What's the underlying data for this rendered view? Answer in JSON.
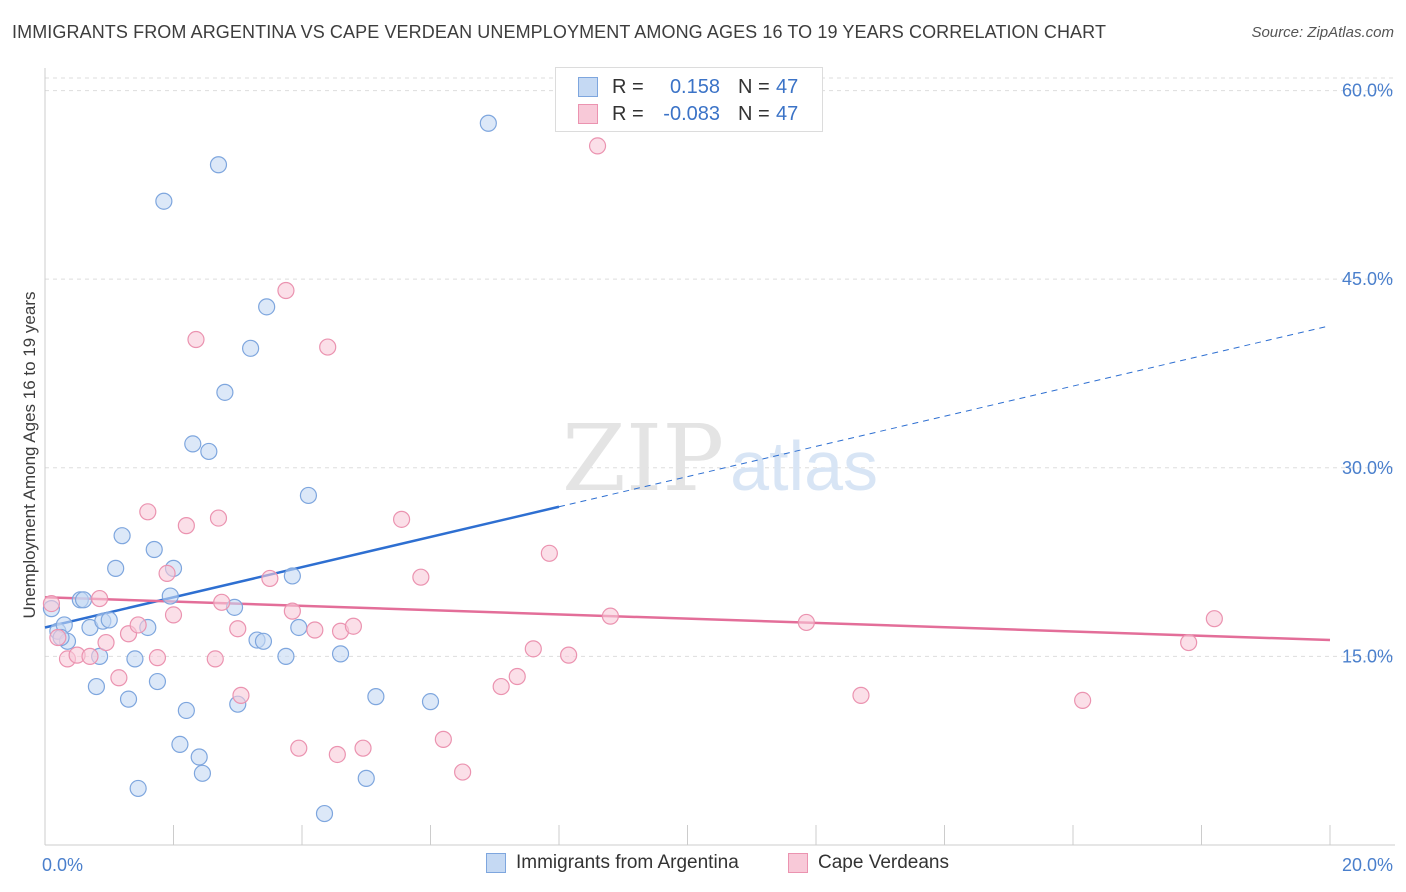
{
  "title": "IMMIGRANTS FROM ARGENTINA VS CAPE VERDEAN UNEMPLOYMENT AMONG AGES 16 TO 19 YEARS CORRELATION CHART",
  "source": "Source: ZipAtlas.com",
  "watermark": {
    "zip": "ZIP",
    "atlas": "atlas"
  },
  "legend": {
    "rows": [
      {
        "r_label": "R =",
        "r_value": "0.158",
        "n_label": "N =",
        "n_value": "47"
      },
      {
        "r_label": "R =",
        "r_value": "-0.083",
        "n_label": "N =",
        "n_value": "47"
      }
    ]
  },
  "bottom_legend": [
    "Immigrants from Argentina",
    "Cape Verdeans"
  ],
  "colors": {
    "blue_fill": "#c5d9f3",
    "blue_stroke": "#7ea6de",
    "blue_line": "#2e6fd1",
    "pink_fill": "#f8c9d8",
    "pink_stroke": "#eb93b0",
    "pink_line": "#e36e99",
    "grid": "#dddddd",
    "tick_text": "#4a7fcc"
  },
  "chart_data": {
    "type": "scatter",
    "title": "IMMIGRANTS FROM ARGENTINA VS CAPE VERDEAN UNEMPLOYMENT AMONG AGES 16 TO 19 YEARS CORRELATION CHART",
    "xlabel": "",
    "ylabel": "Unemployment Among Ages 16 to 19 years",
    "xlim": [
      0,
      20
    ],
    "ylim": [
      0,
      61
    ],
    "x_tick_labels": [
      "0.0%",
      "20.0%"
    ],
    "y_ticks": [
      15,
      30,
      45,
      60
    ],
    "y_tick_labels": [
      "15.0%",
      "30.0%",
      "45.0%",
      "60.0%"
    ],
    "grid": true,
    "series": [
      {
        "name": "Immigrants from Argentina",
        "color": "blue",
        "points": [
          [
            0.1,
            18.8
          ],
          [
            0.2,
            17.0
          ],
          [
            0.3,
            17.5
          ],
          [
            0.35,
            16.2
          ],
          [
            0.55,
            19.5
          ],
          [
            0.7,
            17.3
          ],
          [
            0.9,
            17.8
          ],
          [
            0.8,
            12.6
          ],
          [
            0.85,
            15.0
          ],
          [
            1.0,
            17.9
          ],
          [
            1.1,
            22.0
          ],
          [
            1.2,
            24.6
          ],
          [
            1.3,
            11.6
          ],
          [
            1.4,
            14.8
          ],
          [
            1.45,
            4.5
          ],
          [
            1.6,
            17.3
          ],
          [
            1.7,
            23.5
          ],
          [
            1.75,
            13.0
          ],
          [
            1.85,
            51.2
          ],
          [
            1.95,
            19.8
          ],
          [
            2.0,
            22.0
          ],
          [
            2.1,
            8.0
          ],
          [
            2.2,
            10.7
          ],
          [
            2.3,
            31.9
          ],
          [
            2.4,
            7.0
          ],
          [
            2.45,
            5.7
          ],
          [
            2.55,
            31.3
          ],
          [
            2.7,
            54.1
          ],
          [
            2.8,
            36.0
          ],
          [
            2.95,
            18.9
          ],
          [
            3.0,
            11.2
          ],
          [
            3.2,
            39.5
          ],
          [
            3.3,
            16.3
          ],
          [
            3.4,
            16.2
          ],
          [
            3.45,
            42.8
          ],
          [
            3.75,
            15.0
          ],
          [
            3.85,
            21.4
          ],
          [
            3.95,
            17.3
          ],
          [
            4.1,
            27.8
          ],
          [
            4.35,
            2.5
          ],
          [
            4.6,
            15.2
          ],
          [
            5.0,
            5.3
          ],
          [
            5.15,
            11.8
          ],
          [
            6.0,
            11.4
          ],
          [
            6.9,
            57.4
          ],
          [
            0.25,
            16.5
          ],
          [
            0.6,
            19.5
          ]
        ],
        "trend": {
          "x": [
            0,
            8
          ],
          "y": [
            17.3,
            26.9
          ]
        },
        "trend_dashed": {
          "x": [
            8,
            20
          ],
          "y": [
            26.9,
            41.3
          ]
        }
      },
      {
        "name": "Cape Verdeans",
        "color": "pink",
        "points": [
          [
            0.1,
            19.2
          ],
          [
            0.2,
            16.5
          ],
          [
            0.35,
            14.8
          ],
          [
            0.5,
            15.1
          ],
          [
            0.7,
            15.0
          ],
          [
            0.85,
            19.6
          ],
          [
            0.95,
            16.1
          ],
          [
            1.15,
            13.3
          ],
          [
            1.3,
            16.8
          ],
          [
            1.45,
            17.5
          ],
          [
            1.6,
            26.5
          ],
          [
            1.75,
            14.9
          ],
          [
            1.9,
            21.6
          ],
          [
            2.0,
            18.3
          ],
          [
            2.2,
            25.4
          ],
          [
            2.35,
            40.2
          ],
          [
            2.65,
            14.8
          ],
          [
            2.7,
            26.0
          ],
          [
            2.75,
            19.3
          ],
          [
            3.05,
            11.9
          ],
          [
            3.0,
            17.2
          ],
          [
            3.5,
            21.2
          ],
          [
            3.85,
            18.6
          ],
          [
            3.95,
            7.7
          ],
          [
            4.2,
            17.1
          ],
          [
            4.4,
            39.6
          ],
          [
            4.55,
            7.2
          ],
          [
            4.6,
            17.0
          ],
          [
            4.8,
            17.4
          ],
          [
            4.95,
            7.7
          ],
          [
            5.55,
            25.9
          ],
          [
            5.85,
            21.3
          ],
          [
            6.2,
            8.4
          ],
          [
            6.5,
            5.8
          ],
          [
            7.1,
            12.6
          ],
          [
            7.35,
            13.4
          ],
          [
            7.6,
            15.6
          ],
          [
            7.85,
            23.2
          ],
          [
            8.15,
            15.1
          ],
          [
            8.6,
            55.6
          ],
          [
            8.8,
            18.2
          ],
          [
            3.75,
            44.1
          ],
          [
            11.85,
            17.7
          ],
          [
            12.7,
            11.9
          ],
          [
            16.15,
            11.5
          ],
          [
            17.8,
            16.1
          ],
          [
            18.2,
            18.0
          ]
        ],
        "trend": {
          "x": [
            0,
            20
          ],
          "y": [
            19.7,
            16.3
          ]
        }
      }
    ]
  }
}
